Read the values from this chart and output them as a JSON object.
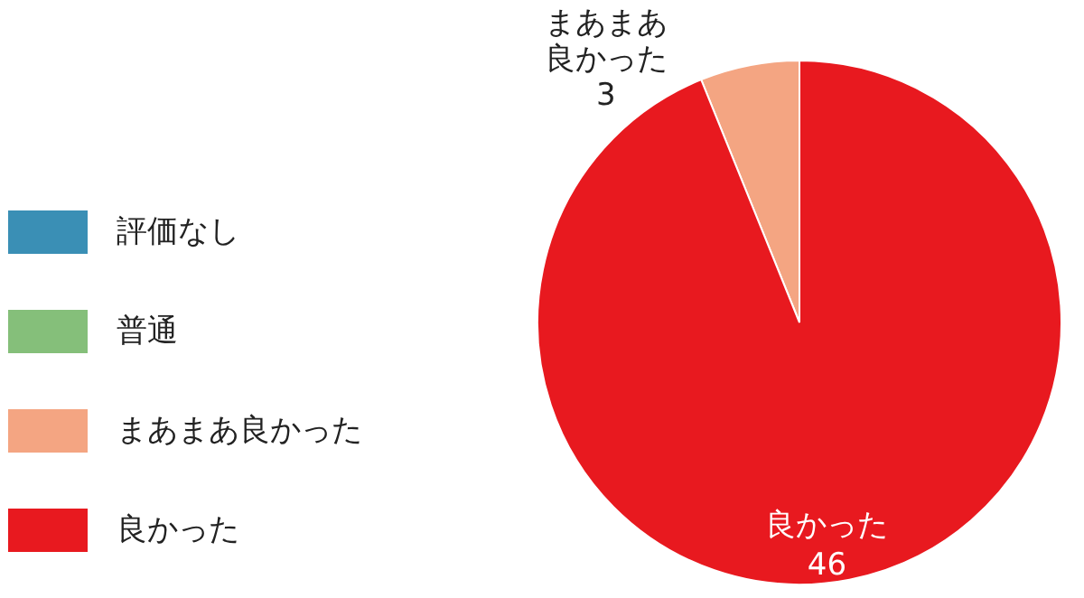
{
  "chart_data": {
    "type": "pie",
    "categories": [
      "評価なし",
      "普通",
      "まあまあ良かった",
      "良かった"
    ],
    "values": [
      0,
      0,
      3,
      46
    ],
    "colors": [
      "#3a8fb5",
      "#85bf7a",
      "#f4a582",
      "#e8191f"
    ],
    "value_labels": [
      null,
      null,
      "まあまあ良かった\n3",
      "良かった\n46"
    ],
    "legend": "left"
  }
}
